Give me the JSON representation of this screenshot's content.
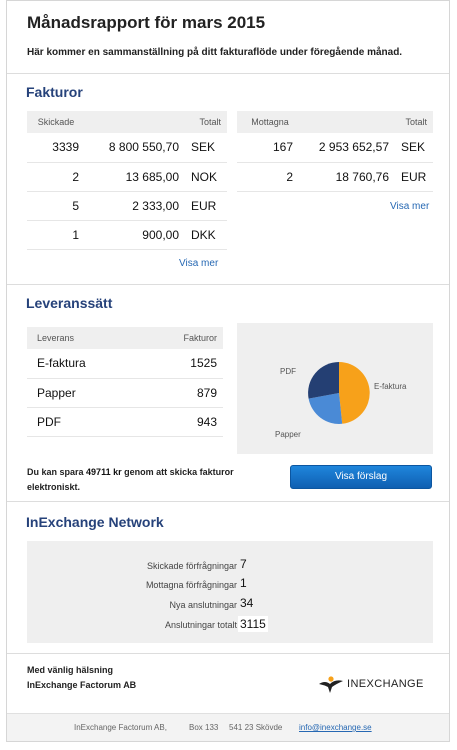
{
  "header": {
    "title": "Månadsrapport för mars 2015",
    "intro": "Här kommer en sammanställning på ditt fakturaflöde under föregående månad."
  },
  "invoices": {
    "heading": "Fakturor",
    "sent": {
      "col_count": "Skickade",
      "col_total": "Totalt",
      "rows": [
        {
          "count": "3339",
          "amount": "8 800 550,70",
          "currency": "SEK"
        },
        {
          "count": "2",
          "amount": "13 685,00",
          "currency": "NOK"
        },
        {
          "count": "5",
          "amount": "2 333,00",
          "currency": "EUR"
        },
        {
          "count": "1",
          "amount": "900,00",
          "currency": "DKK"
        }
      ],
      "more": "Visa mer"
    },
    "received": {
      "col_count": "Mottagna",
      "col_total": "Totalt",
      "rows": [
        {
          "count": "167",
          "amount": "2 953 652,57",
          "currency": "SEK"
        },
        {
          "count": "2",
          "amount": "18 760,76",
          "currency": "EUR"
        }
      ],
      "more": "Visa mer"
    }
  },
  "delivery": {
    "heading": "Leveranssätt",
    "col_method": "Leverans",
    "col_invoices": "Fakturor",
    "rows": [
      {
        "method": "E-faktura",
        "count": "1525"
      },
      {
        "method": "Papper",
        "count": "879"
      },
      {
        "method": "PDF",
        "count": "943"
      }
    ],
    "pie_labels": {
      "efaktura": "E-faktura",
      "papper": "Papper",
      "pdf": "PDF"
    },
    "colors": {
      "efaktura": "#f7a11a",
      "papper": "#4a8ad6",
      "pdf": "#243f73"
    },
    "saving": {
      "prefix": "Du kan spara",
      "amount": "49711 kr",
      "suffix": "genom att skicka fakturor elektroniskt."
    },
    "button": "Visa förslag"
  },
  "network": {
    "heading": "InExchange Network",
    "stats": [
      {
        "label": "Skickade förfrågningar",
        "value": "7"
      },
      {
        "label": "Mottagna förfrågningar",
        "value": "1"
      },
      {
        "label": "Nya anslutningar",
        "value": "34"
      },
      {
        "label": "Anslutningar totalt",
        "value": "3115"
      }
    ]
  },
  "signature": {
    "line1": "Med vänlig hälsning",
    "line2": "InExchange Factorum AB"
  },
  "logo_text": "INEXCHANGE",
  "footer": {
    "company": "InExchange Factorum AB,",
    "box": "Box 133",
    "city": "541 23 Skövde",
    "email": "info@inexchange.se"
  }
}
